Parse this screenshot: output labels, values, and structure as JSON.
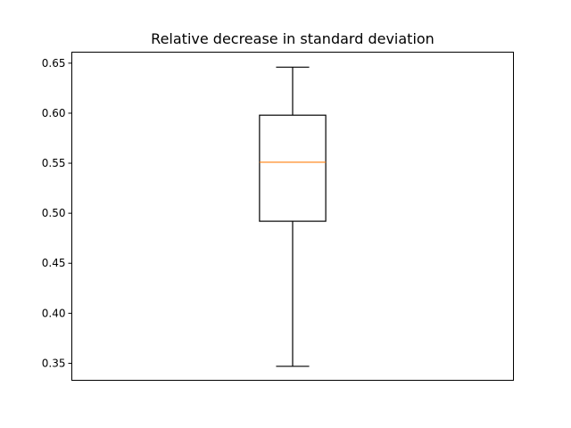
{
  "chart_data": {
    "type": "box",
    "title": "Relative decrease in standard deviation",
    "xlabel": "",
    "ylabel": "",
    "ylim": [
      0.333,
      0.661
    ],
    "yticks": [
      0.35,
      0.4,
      0.45,
      0.5,
      0.55,
      0.6,
      0.65
    ],
    "ytick_labels": [
      "0.35",
      "0.40",
      "0.45",
      "0.50",
      "0.55",
      "0.60",
      "0.65"
    ],
    "grid": false,
    "boxes": [
      {
        "whisker_low": 0.347,
        "q1": 0.492,
        "median": 0.551,
        "q3": 0.598,
        "whisker_high": 0.646
      }
    ],
    "colors": {
      "box": "#000000",
      "median": "#ff7f0e",
      "axes": "#000000"
    }
  }
}
